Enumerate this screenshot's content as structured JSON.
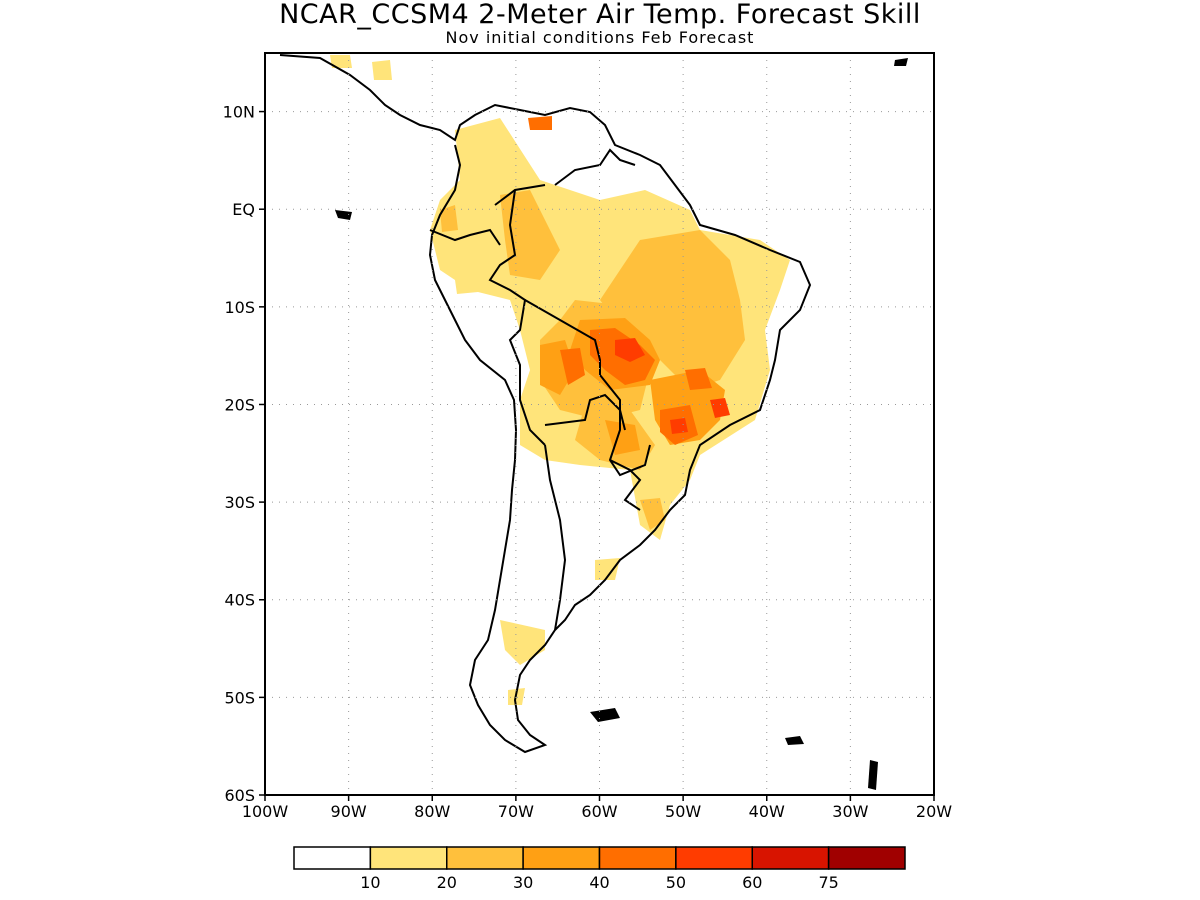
{
  "title": "NCAR_CCSM4 2-Meter Air Temp. Forecast Skill",
  "subtitle": "Nov initial conditions  Feb Forecast",
  "map": {
    "lon_range": [
      -100,
      -20
    ],
    "lat_range": [
      -60,
      16
    ],
    "lat_ticks": [
      {
        "value": 10,
        "label": "10N"
      },
      {
        "value": 0,
        "label": "EQ"
      },
      {
        "value": -10,
        "label": "10S"
      },
      {
        "value": -20,
        "label": "20S"
      },
      {
        "value": -30,
        "label": "30S"
      },
      {
        "value": -40,
        "label": "40S"
      },
      {
        "value": -50,
        "label": "50S"
      },
      {
        "value": -60,
        "label": "60S"
      }
    ],
    "lon_ticks": [
      {
        "value": -100,
        "label": "100W"
      },
      {
        "value": -90,
        "label": "90W"
      },
      {
        "value": -80,
        "label": "80W"
      },
      {
        "value": -70,
        "label": "70W"
      },
      {
        "value": -60,
        "label": "60W"
      },
      {
        "value": -50,
        "label": "50W"
      },
      {
        "value": -40,
        "label": "40W"
      },
      {
        "value": -30,
        "label": "30W"
      },
      {
        "value": -20,
        "label": "20W"
      }
    ],
    "grid": "dotted"
  },
  "colorbar": {
    "colors": [
      "#ffffff",
      "#ffe47a",
      "#ffc03c",
      "#ffa014",
      "#ff6e00",
      "#ff3c00",
      "#d81400",
      "#a00000"
    ],
    "labels": [
      "10",
      "20",
      "30",
      "40",
      "50",
      "60",
      "75"
    ]
  }
}
